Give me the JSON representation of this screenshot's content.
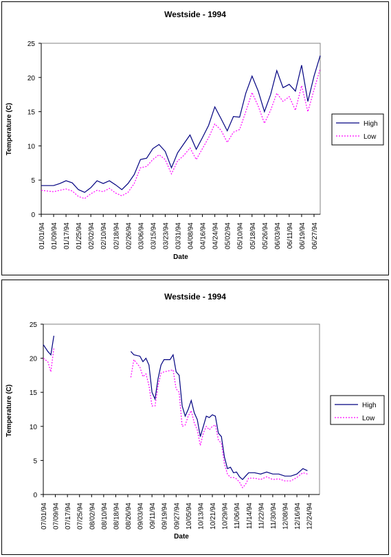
{
  "chart_data": [
    {
      "type": "line",
      "title": "Westside - 1994",
      "xlabel": "Date",
      "ylabel": "Temperature (C)",
      "ylim": [
        0,
        25
      ],
      "yticks": [
        0,
        5,
        10,
        15,
        20,
        25
      ],
      "categories": [
        "01/01/94",
        "01/09/94",
        "01/17/94",
        "01/25/94",
        "02/02/94",
        "02/10/94",
        "02/18/94",
        "02/26/94",
        "03/06/94",
        "03/15/94",
        "03/23/94",
        "03/31/94",
        "04/08/94",
        "04/16/94",
        "04/24/94",
        "05/02/94",
        "05/10/94",
        "05/18/94",
        "05/26/94",
        "06/03/94",
        "06/11/94",
        "06/19/94",
        "06/27/94"
      ],
      "x_day_start": 0,
      "x_day_end": 180,
      "legend_position": "right",
      "grid": false,
      "series": [
        {
          "name": "High",
          "color": "#000080",
          "style": "solid",
          "points": [
            [
              0,
              4.2
            ],
            [
              8,
              4.2
            ],
            [
              12,
              4.5
            ],
            [
              16,
              4.9
            ],
            [
              20,
              4.6
            ],
            [
              24,
              3.6
            ],
            [
              28,
              3.2
            ],
            [
              32,
              3.9
            ],
            [
              36,
              4.9
            ],
            [
              40,
              4.5
            ],
            [
              44,
              4.9
            ],
            [
              48,
              4.3
            ],
            [
              52,
              3.6
            ],
            [
              56,
              4.5
            ],
            [
              60,
              5.8
            ],
            [
              64,
              8.0
            ],
            [
              68,
              8.2
            ],
            [
              72,
              9.6
            ],
            [
              76,
              10.2
            ],
            [
              80,
              9.2
            ],
            [
              84,
              6.8
            ],
            [
              88,
              9.0
            ],
            [
              92,
              10.3
            ],
            [
              96,
              11.6
            ],
            [
              100,
              9.5
            ],
            [
              104,
              11.2
            ],
            [
              108,
              13.0
            ],
            [
              112,
              15.7
            ],
            [
              116,
              14.0
            ],
            [
              120,
              12.2
            ],
            [
              124,
              14.3
            ],
            [
              128,
              14.2
            ],
            [
              132,
              17.7
            ],
            [
              136,
              20.2
            ],
            [
              140,
              18.0
            ],
            [
              144,
              15.0
            ],
            [
              148,
              17.5
            ],
            [
              152,
              21.0
            ],
            [
              156,
              18.5
            ],
            [
              160,
              19.0
            ],
            [
              164,
              18.0
            ],
            [
              168,
              21.8
            ],
            [
              172,
              16.5
            ],
            [
              176,
              20.2
            ],
            [
              180,
              23.2
            ]
          ]
        },
        {
          "name": "Low",
          "color": "#ff00ff",
          "style": "dotted",
          "points": [
            [
              0,
              3.5
            ],
            [
              8,
              3.3
            ],
            [
              12,
              3.5
            ],
            [
              16,
              3.7
            ],
            [
              20,
              3.4
            ],
            [
              24,
              2.6
            ],
            [
              28,
              2.3
            ],
            [
              32,
              3.0
            ],
            [
              36,
              3.5
            ],
            [
              40,
              3.3
            ],
            [
              44,
              3.8
            ],
            [
              48,
              3.1
            ],
            [
              52,
              2.7
            ],
            [
              56,
              3.2
            ],
            [
              60,
              4.5
            ],
            [
              64,
              6.8
            ],
            [
              68,
              7.0
            ],
            [
              72,
              8.0
            ],
            [
              76,
              8.7
            ],
            [
              80,
              8.0
            ],
            [
              84,
              5.9
            ],
            [
              88,
              7.8
            ],
            [
              92,
              8.6
            ],
            [
              96,
              9.7
            ],
            [
              100,
              8.0
            ],
            [
              104,
              9.6
            ],
            [
              108,
              11.2
            ],
            [
              112,
              13.2
            ],
            [
              116,
              12.3
            ],
            [
              120,
              10.5
            ],
            [
              124,
              12.0
            ],
            [
              128,
              12.4
            ],
            [
              132,
              15.0
            ],
            [
              136,
              17.8
            ],
            [
              140,
              15.8
            ],
            [
              144,
              13.3
            ],
            [
              148,
              15.2
            ],
            [
              152,
              17.7
            ],
            [
              156,
              16.5
            ],
            [
              160,
              17.2
            ],
            [
              164,
              15.2
            ],
            [
              168,
              18.8
            ],
            [
              172,
              15.0
            ],
            [
              176,
              18.2
            ],
            [
              180,
              21.3
            ]
          ]
        }
      ]
    },
    {
      "type": "line",
      "title": "Westside - 1994",
      "xlabel": "Date",
      "ylabel": "Temperature (C)",
      "ylim": [
        0,
        25
      ],
      "yticks": [
        0,
        5,
        10,
        15,
        20,
        25
      ],
      "categories": [
        "07/01/94",
        "07/09/94",
        "07/17/94",
        "07/25/94",
        "08/02/94",
        "08/10/94",
        "08/18/94",
        "08/26/94",
        "09/03/94",
        "09/11/94",
        "09/19/94",
        "09/27/94",
        "10/05/94",
        "10/13/94",
        "10/21/94",
        "10/29/94",
        "11/06/94",
        "11/14/94",
        "11/22/94",
        "11/30/94",
        "12/08/94",
        "12/16/94",
        "12/24/94"
      ],
      "x_day_start": 0,
      "x_day_end": 183,
      "legend_position": "right",
      "grid": false,
      "series": [
        {
          "name": "High",
          "color": "#000080",
          "style": "solid",
          "segments": [
            [
              [
                0,
                22.0
              ],
              [
                3,
                21.0
              ],
              [
                5,
                20.5
              ],
              [
                7,
                23.3
              ]
            ],
            [
              [
                58,
                21.0
              ],
              [
                60,
                20.5
              ],
              [
                64,
                20.3
              ],
              [
                66,
                19.5
              ],
              [
                68,
                20.0
              ],
              [
                70,
                19.0
              ],
              [
                72,
                15.0
              ],
              [
                74,
                14.0
              ],
              [
                76,
                17.0
              ],
              [
                78,
                19.0
              ],
              [
                80,
                19.8
              ],
              [
                84,
                19.8
              ],
              [
                86,
                20.5
              ],
              [
                88,
                18.0
              ],
              [
                90,
                17.5
              ],
              [
                92,
                13.0
              ],
              [
                94,
                11.5
              ],
              [
                96,
                12.5
              ],
              [
                98,
                13.8
              ],
              [
                100,
                12.0
              ],
              [
                102,
                11.0
              ],
              [
                104,
                8.5
              ],
              [
                106,
                10.0
              ],
              [
                108,
                11.5
              ],
              [
                110,
                11.3
              ],
              [
                112,
                11.7
              ],
              [
                114,
                11.5
              ],
              [
                116,
                9.0
              ],
              [
                118,
                8.5
              ],
              [
                120,
                5.5
              ],
              [
                122,
                3.8
              ],
              [
                124,
                4.0
              ],
              [
                126,
                3.2
              ],
              [
                128,
                3.3
              ],
              [
                130,
                2.6
              ],
              [
                132,
                2.2
              ],
              [
                134,
                2.7
              ],
              [
                136,
                3.2
              ],
              [
                140,
                3.2
              ],
              [
                144,
                3.0
              ],
              [
                148,
                3.3
              ],
              [
                152,
                3.0
              ],
              [
                156,
                3.0
              ],
              [
                160,
                2.7
              ],
              [
                164,
                2.7
              ],
              [
                168,
                3.0
              ],
              [
                172,
                3.8
              ],
              [
                175,
                3.5
              ]
            ]
          ]
        },
        {
          "name": "Low",
          "color": "#ff00ff",
          "style": "dotted",
          "segments": [
            [
              [
                0,
                20.0
              ],
              [
                3,
                19.5
              ],
              [
                5,
                18.0
              ],
              [
                7,
                21.5
              ]
            ],
            [
              [
                58,
                17.2
              ],
              [
                60,
                19.8
              ],
              [
                64,
                18.7
              ],
              [
                66,
                17.3
              ],
              [
                68,
                17.7
              ],
              [
                70,
                16.0
              ],
              [
                72,
                13.0
              ],
              [
                74,
                13.0
              ],
              [
                76,
                16.0
              ],
              [
                78,
                17.8
              ],
              [
                80,
                18.0
              ],
              [
                84,
                18.2
              ],
              [
                86,
                18.3
              ],
              [
                88,
                15.5
              ],
              [
                90,
                15.0
              ],
              [
                92,
                10.0
              ],
              [
                94,
                10.2
              ],
              [
                96,
                11.5
              ],
              [
                98,
                12.3
              ],
              [
                100,
                10.5
              ],
              [
                102,
                9.5
              ],
              [
                104,
                7.2
              ],
              [
                106,
                9.0
              ],
              [
                108,
                10.0
              ],
              [
                110,
                9.5
              ],
              [
                112,
                10.0
              ],
              [
                114,
                10.2
              ],
              [
                116,
                8.0
              ],
              [
                118,
                7.5
              ],
              [
                120,
                4.5
              ],
              [
                122,
                3.0
              ],
              [
                124,
                2.5
              ],
              [
                126,
                2.5
              ],
              [
                128,
                2.3
              ],
              [
                130,
                1.8
              ],
              [
                132,
                1.0
              ],
              [
                134,
                1.5
              ],
              [
                136,
                2.4
              ],
              [
                140,
                2.4
              ],
              [
                144,
                2.2
              ],
              [
                148,
                2.6
              ],
              [
                152,
                2.2
              ],
              [
                156,
                2.3
              ],
              [
                160,
                2.0
              ],
              [
                164,
                2.0
              ],
              [
                168,
                2.5
              ],
              [
                172,
                3.2
              ],
              [
                175,
                3.0
              ]
            ]
          ]
        }
      ]
    }
  ]
}
